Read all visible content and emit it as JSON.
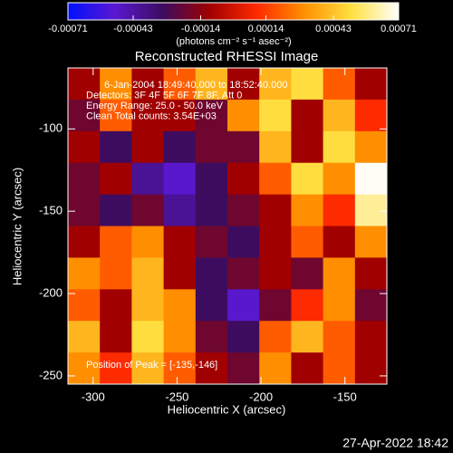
{
  "chart_data": {
    "type": "heatmap",
    "title": "Reconstructed RHESSI Image",
    "xlabel": "Heliocentric X (arcsec)",
    "ylabel": "Heliocentric Y (arcsec)",
    "colorbar_label": "(photons cm⁻² s⁻¹ asec⁻²)",
    "annotations": [
      "6-Jan-2004 18:49:40.000 to 18:52:40.000",
      "Detectors: 3F 4F 5F 6F 7F 8F, Att 0",
      "Energy Range: 25.0 - 50.0 keV",
      "Clean    Total counts: 3.54E+03"
    ],
    "peak_note": "Position of Peak = [-135,-146]",
    "footer": "27-Apr-2022 18:42",
    "colors": [
      "#0010ff",
      "#5a18d0",
      "#3c0c60",
      "#a00000",
      "#ff2a00",
      "#ff9000",
      "#ffe040",
      "#ffffff"
    ],
    "clim": [
      -0.00071,
      0.00071
    ],
    "cticks": [
      -0.00071,
      -0.00043,
      -0.00014,
      0.00014,
      0.00043,
      0.00071
    ],
    "xlim": [
      -315,
      -125
    ],
    "xticks": [
      -300,
      -250,
      -200,
      -150
    ],
    "ylim": [
      -255,
      -63
    ],
    "yticks": [
      -250,
      -200,
      -150,
      -100
    ],
    "x": [
      -305.5,
      -286.5,
      -267.5,
      -248.5,
      -229.5,
      -210.5,
      -191.5,
      -172.5,
      -153.5,
      -134.5
    ],
    "y": [
      -72.6,
      -91.8,
      -111,
      -130.2,
      -149.4,
      -168.6,
      -187.8,
      -207,
      -226.2,
      -245.4
    ],
    "z": [
      [
        -0.0001,
        0.0003,
        -0.0001,
        0.0002,
        0.0004,
        -0.0001,
        0.0004,
        0.0005,
        0.0002,
        -0.0001
      ],
      [
        -0.0002,
        0.0002,
        -0.0001,
        -0.0001,
        -0.0002,
        0.0003,
        0.0005,
        -0.0001,
        0.0004,
        0.0001
      ],
      [
        -0.0001,
        -0.0003,
        -0.0001,
        -0.0003,
        -0.0002,
        -0.0002,
        0.0004,
        -0.0001,
        0.0005,
        0.0003
      ],
      [
        -0.0002,
        -0.0001,
        -0.0004,
        -0.0005,
        -0.0003,
        -0.0001,
        0.0002,
        0.0005,
        0.0003,
        0.0007
      ],
      [
        -0.0002,
        -0.0003,
        -0.0002,
        -0.0004,
        -0.0003,
        -0.0002,
        -0.0001,
        0.0003,
        0.0001,
        0.0006
      ],
      [
        -0.0001,
        0.0002,
        0.0003,
        -0.0001,
        -0.0002,
        -0.0003,
        -0.0001,
        0.0002,
        -0.0001,
        0.0003
      ],
      [
        0.0003,
        0.0002,
        0.0004,
        -0.0001,
        -0.0003,
        -0.0002,
        -0.0001,
        -0.0002,
        0.0003,
        -0.0001
      ],
      [
        0.0002,
        -0.0001,
        0.0004,
        0.0003,
        -0.0003,
        -0.0005,
        -0.0002,
        0.0001,
        0.0003,
        -0.0002
      ],
      [
        0.0004,
        -0.0001,
        0.0005,
        0.0003,
        -0.0002,
        -0.0003,
        0.0002,
        0.0004,
        0.0002,
        -0.0001
      ],
      [
        0.0003,
        0.0001,
        0.0004,
        0.0002,
        -0.0001,
        -0.0002,
        0.0003,
        -0.0001,
        0.0002,
        -0.0001
      ]
    ]
  }
}
